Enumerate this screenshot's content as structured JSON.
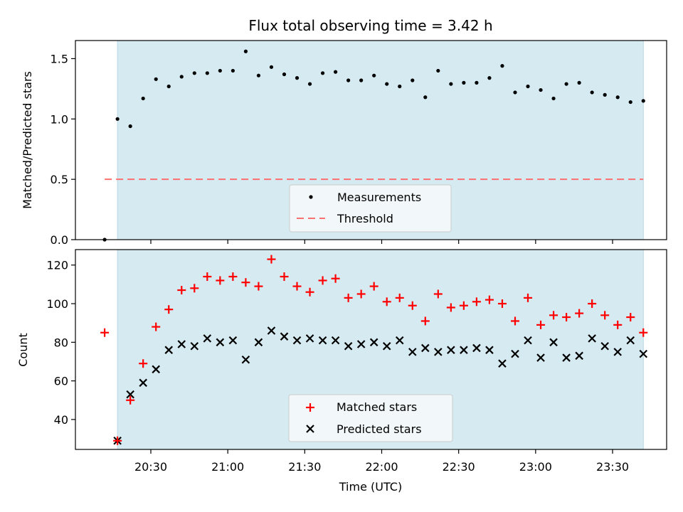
{
  "chart_data": {
    "title": "Flux total observing time = 3.42 h",
    "xlabel": "Time (UTC)",
    "x_tick_labels": [
      "20:30",
      "21:00",
      "21:30",
      "22:00",
      "22:30",
      "23:00",
      "23:30"
    ],
    "colors": {
      "shaded_region": "#d5eaf1",
      "measurements": "#000000",
      "threshold": "#ff7070",
      "matched": "#ff0000",
      "predicted": "#000000"
    },
    "top_panel": {
      "type": "scatter",
      "ylabel": "Matched/Predicted stars",
      "ylim": [
        0,
        1.65
      ],
      "y_ticks": [
        "0.0",
        "0.5",
        "1.0",
        "1.5"
      ],
      "shaded_interval": [
        "20:17",
        "23:42"
      ],
      "threshold": {
        "name": "Threshold",
        "value": 0.5,
        "x_range": [
          "20:12",
          "23:42"
        ]
      },
      "legend": {
        "placement": "lower center",
        "entries": [
          "Measurements",
          "Threshold"
        ]
      },
      "series": [
        {
          "name": "Measurements",
          "x": [
            "20:12",
            "20:17",
            "20:22",
            "20:27",
            "20:32",
            "20:37",
            "20:42",
            "20:47",
            "20:52",
            "20:57",
            "21:02",
            "21:07",
            "21:12",
            "21:17",
            "21:22",
            "21:27",
            "21:32",
            "21:37",
            "21:42",
            "21:47",
            "21:52",
            "21:57",
            "22:02",
            "22:07",
            "22:12",
            "22:17",
            "22:22",
            "22:27",
            "22:32",
            "22:37",
            "22:42",
            "22:47",
            "22:52",
            "22:57",
            "23:02",
            "23:07",
            "23:12",
            "23:17",
            "23:22",
            "23:27",
            "23:32",
            "23:37",
            "23:42"
          ],
          "y": [
            0.0,
            1.0,
            0.94,
            1.17,
            1.33,
            1.27,
            1.35,
            1.38,
            1.38,
            1.4,
            1.4,
            1.56,
            1.36,
            1.43,
            1.37,
            1.34,
            1.29,
            1.38,
            1.39,
            1.32,
            1.32,
            1.36,
            1.29,
            1.27,
            1.32,
            1.18,
            1.4,
            1.29,
            1.3,
            1.3,
            1.34,
            1.44,
            1.22,
            1.27,
            1.24,
            1.17,
            1.29,
            1.3,
            1.22,
            1.2,
            1.18,
            1.14,
            1.15
          ]
        }
      ]
    },
    "bottom_panel": {
      "type": "scatter",
      "ylabel": "Count",
      "ylim": [
        24.5,
        128
      ],
      "y_ticks": [
        "40",
        "60",
        "80",
        "100",
        "120"
      ],
      "shaded_interval": [
        "20:17",
        "23:42"
      ],
      "legend": {
        "placement": "lower center",
        "entries": [
          "Matched stars",
          "Predicted stars"
        ]
      },
      "x": [
        "20:12",
        "20:17",
        "20:22",
        "20:27",
        "20:32",
        "20:37",
        "20:42",
        "20:47",
        "20:52",
        "20:57",
        "21:02",
        "21:07",
        "21:12",
        "21:17",
        "21:22",
        "21:27",
        "21:32",
        "21:37",
        "21:42",
        "21:47",
        "21:52",
        "21:57",
        "22:02",
        "22:07",
        "22:12",
        "22:17",
        "22:22",
        "22:27",
        "22:32",
        "22:37",
        "22:42",
        "22:47",
        "22:52",
        "22:57",
        "23:02",
        "23:07",
        "23:12",
        "23:17",
        "23:22",
        "23:27",
        "23:32",
        "23:37",
        "23:42"
      ],
      "series": [
        {
          "name": "Matched stars",
          "marker": "+",
          "values": [
            85,
            29,
            50,
            69,
            88,
            97,
            107,
            108,
            114,
            112,
            114,
            111,
            109,
            123,
            114,
            109,
            106,
            112,
            113,
            103,
            105,
            109,
            101,
            103,
            99,
            91,
            105,
            98,
            99,
            101,
            102,
            100,
            91,
            103,
            89,
            94,
            93,
            95,
            100,
            94,
            89,
            93,
            85
          ]
        },
        {
          "name": "Predicted stars",
          "marker": "x",
          "values": [
            null,
            29,
            53,
            59,
            66,
            76,
            79,
            78,
            82,
            80,
            81,
            71,
            80,
            86,
            83,
            81,
            82,
            81,
            81,
            78,
            79,
            80,
            78,
            81,
            75,
            77,
            75,
            76,
            76,
            77,
            76,
            69,
            74,
            81,
            72,
            80,
            72,
            73,
            82,
            78,
            75,
            81,
            74
          ]
        }
      ]
    }
  }
}
